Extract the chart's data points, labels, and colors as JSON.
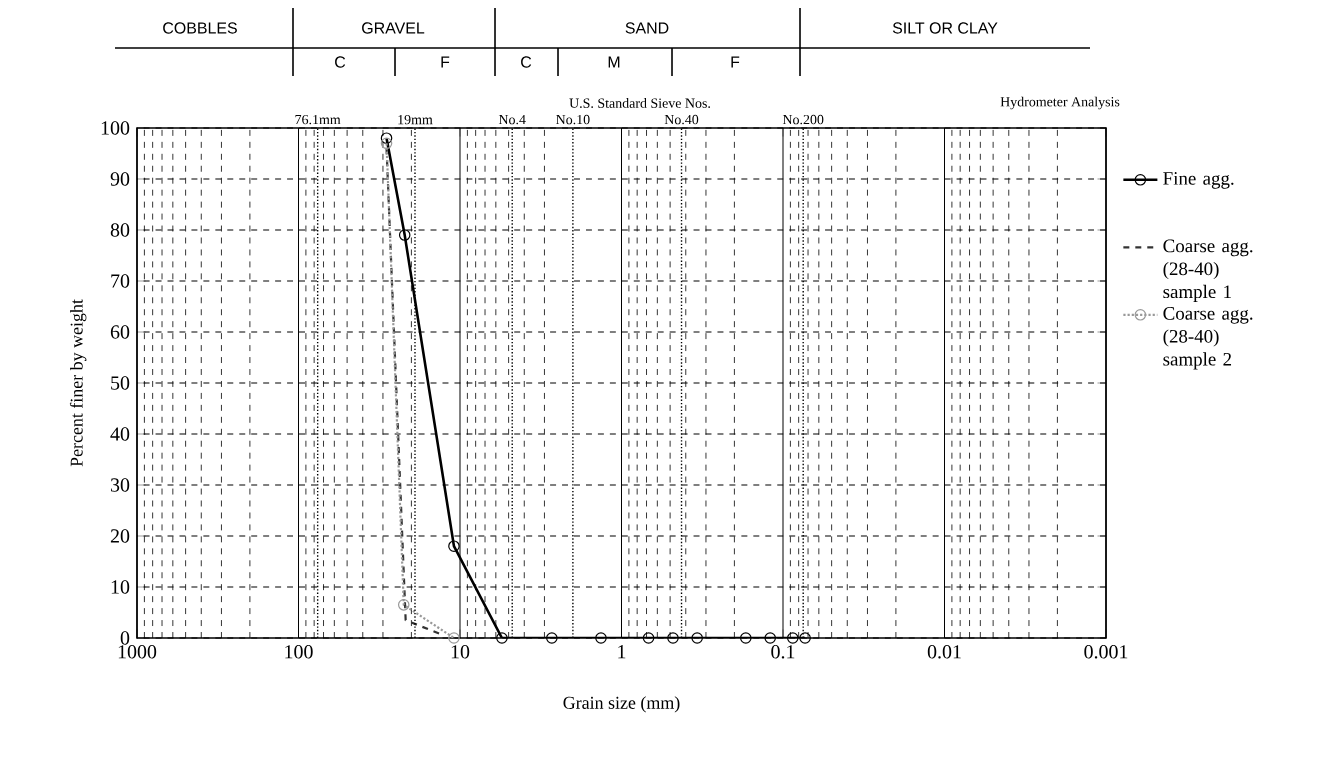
{
  "chart_data": {
    "type": "line",
    "xlabel": "Grain size (mm)",
    "ylabel": "Percent finer by weight",
    "log": "x",
    "xlim": [
      1000,
      0.001
    ],
    "xticks": [
      1000,
      100,
      10,
      1,
      0.1,
      0.01,
      0.001
    ],
    "ylim": [
      0,
      100
    ],
    "yticks": [
      0,
      10,
      20,
      30,
      40,
      50,
      60,
      70,
      80,
      90,
      100
    ],
    "ref_lines": [
      {
        "axis": "x",
        "value": 76.1,
        "label": "76.1mm",
        "line_style": "dotted"
      },
      {
        "axis": "x",
        "value": 19,
        "label": "19mm",
        "line_style": "dotted"
      },
      {
        "axis": "x",
        "value": 4.75,
        "label": "No.4",
        "line_style": "dotted"
      },
      {
        "axis": "x",
        "value": 2,
        "label": "No.10",
        "line_style": "dotted"
      },
      {
        "axis": "x",
        "value": 0.425,
        "label": "No.40",
        "line_style": "dotted"
      },
      {
        "axis": "x",
        "value": 0.075,
        "label": "No.200",
        "line_style": "dotted"
      }
    ],
    "grid": true,
    "legend": "right",
    "annotations": [
      "COBBLES",
      "GRAVEL",
      "C",
      "F",
      "SAND",
      "C",
      "M",
      "F",
      "SILT OR CLAY",
      "U.S. Standard Sieve Nos.",
      "Hydrometer Analysis"
    ],
    "series": [
      {
        "name": "Fine agg.",
        "color": "#000000",
        "marker": "circle",
        "line_style": "solid",
        "x": [
          28.5,
          22,
          10.9,
          5.5,
          2.7,
          1.34,
          0.68,
          0.48,
          0.34,
          0.17,
          0.12,
          0.087,
          0.073
        ],
        "values": [
          98,
          79,
          18,
          0,
          0,
          0,
          0,
          0,
          0,
          0,
          0,
          0,
          0
        ]
      },
      {
        "name": "Coarse agg. (28-40) sample 1",
        "color": "#333333",
        "marker": "none",
        "line_style": "dashed",
        "x": [
          28.5,
          21.7,
          12.6
        ],
        "values": [
          96,
          3.5,
          0.5
        ]
      },
      {
        "name": "Coarse agg. (28-40) sample 2",
        "color": "#999999",
        "marker": "circle",
        "line_style": "dotted",
        "x": [
          28.5,
          22.3,
          10.9
        ],
        "values": [
          97,
          6.5,
          0
        ]
      }
    ]
  }
}
